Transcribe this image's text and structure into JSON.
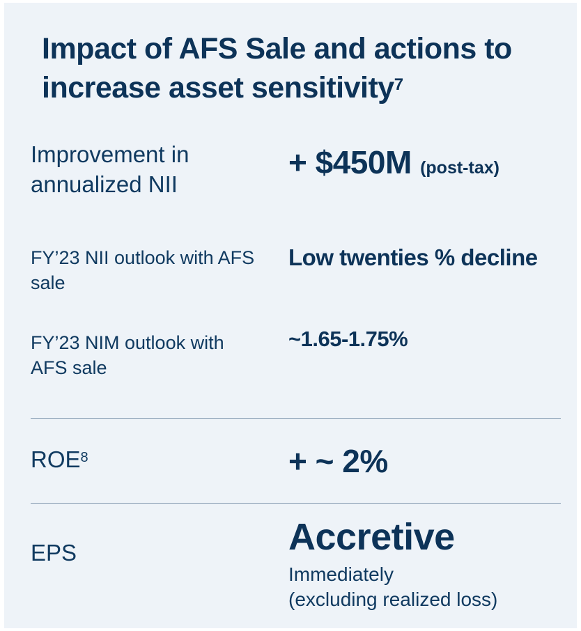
{
  "title": {
    "text": "Impact of AFS Sale and actions to increase asset sensitivity",
    "footnote": "7"
  },
  "rows": {
    "nii": {
      "label": "Improvement in annualized NII",
      "value": "+ $450M",
      "value_suffix": "(post-tax)"
    },
    "nii_outlook": {
      "label": "FY’23 NII outlook with AFS sale",
      "value": "Low twenties % decline"
    },
    "nim_outlook": {
      "label": "FY’23 NIM outlook with AFS sale",
      "value": "~1.65-1.75%"
    },
    "roe": {
      "label": "ROE",
      "footnote": "8",
      "value": "+ ~ 2%"
    },
    "eps": {
      "label": "EPS",
      "value": "Accretive",
      "sub_line1": "Immediately",
      "sub_line2": "(excluding realized loss)"
    }
  },
  "colors": {
    "background": "#eef3f8",
    "text": "#0d3358",
    "divider": "#7f96ad"
  }
}
